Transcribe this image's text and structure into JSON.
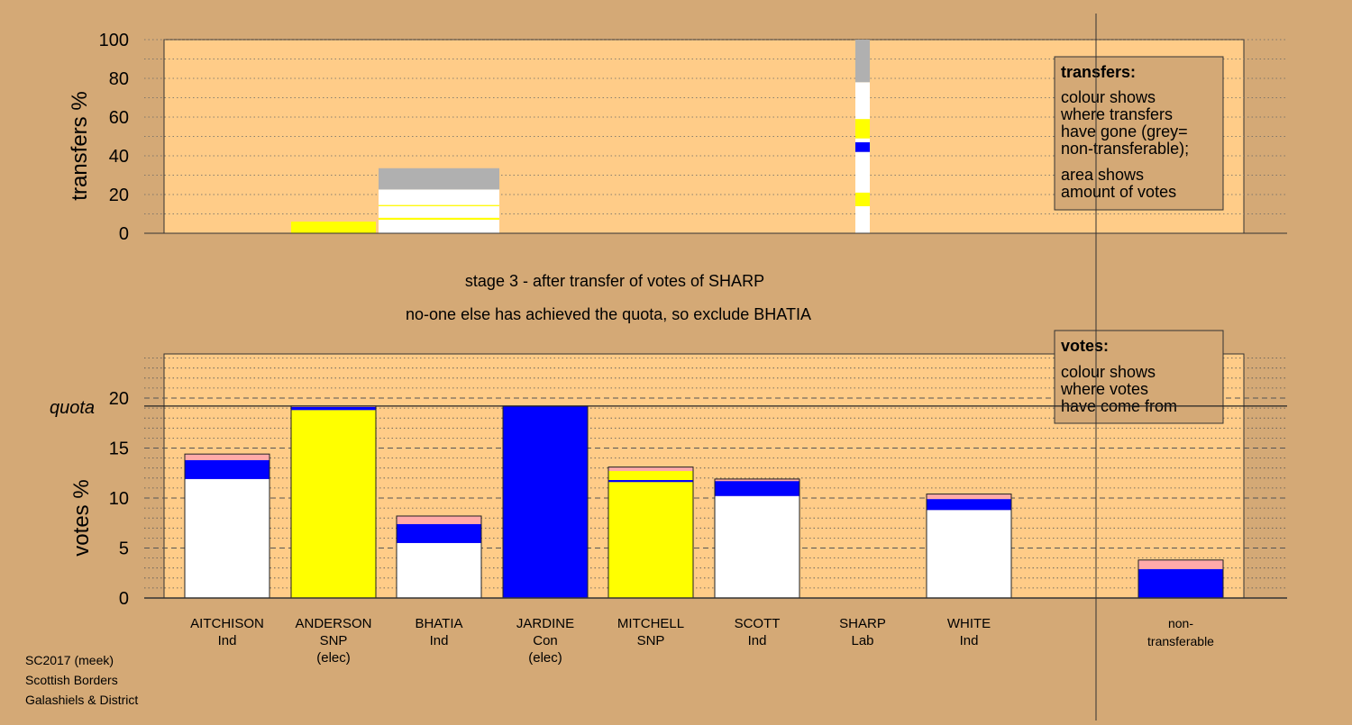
{
  "titles": {
    "stage": "stage 3 - after transfer of votes of SHARP",
    "note": "no-one else has achieved the quota, so exclude BHATIA"
  },
  "footer": [
    "SC2017 (meek)",
    "Scottish Borders",
    "Galashiels & District"
  ],
  "colors": {
    "Ind": "#ffffff",
    "SNP": "#ffff00",
    "Con": "#0000ff",
    "Lab": "#ffaaaa",
    "nontransferable": "#b0b0b0",
    "panel": "#ffcc88",
    "background": "#d4a976"
  },
  "legend_transfers": {
    "title": "transfers:",
    "lines1": [
      "colour shows",
      "where transfers",
      "have gone (grey=",
      "non-transferable);"
    ],
    "lines2": [
      "area shows",
      "amount of votes"
    ]
  },
  "legend_votes": {
    "title": "votes:",
    "lines": [
      "colour shows",
      "where votes",
      "have come from"
    ]
  },
  "chart_data": [
    {
      "type": "bar",
      "stacked": true,
      "ylabel": "transfers %",
      "ylim": [
        0,
        100
      ],
      "yticks": [
        0,
        20,
        40,
        60,
        80,
        100
      ],
      "grid": "dotted",
      "legend_position": "right",
      "categories": [
        "AITCHISON",
        "ANDERSON",
        "BHATIA",
        "JARDINE",
        "MITCHELL",
        "SCOTT",
        "SHARP",
        "WHITE",
        "non-transferable"
      ],
      "bars": [
        {
          "category": "ANDERSON",
          "segments": [
            {
              "party": "SNP",
              "value": 6
            }
          ]
        },
        {
          "category": "BHATIA",
          "segments": [
            {
              "party": "Ind",
              "value": 7
            },
            {
              "party": "SNP",
              "value": 1
            },
            {
              "party": "Ind",
              "value": 6
            },
            {
              "party": "SNP",
              "value": 0.6
            },
            {
              "party": "Ind",
              "value": 8
            },
            {
              "party": "nontransferable",
              "value": 11
            }
          ]
        },
        {
          "category": "SHARP",
          "segments": [
            {
              "party": "Ind",
              "value": 14
            },
            {
              "party": "SNP",
              "value": 7
            },
            {
              "party": "Ind",
              "value": 21
            },
            {
              "party": "Con",
              "value": 5
            },
            {
              "party": "Ind",
              "value": 2
            },
            {
              "party": "SNP",
              "value": 10
            },
            {
              "party": "Ind",
              "value": 19
            },
            {
              "party": "nontransferable",
              "value": 22
            }
          ]
        }
      ]
    },
    {
      "type": "bar",
      "stacked": true,
      "ylabel": "votes %",
      "ylim": [
        0,
        20
      ],
      "yticks": [
        0,
        5,
        10,
        15,
        20
      ],
      "quota": 19.2,
      "quota_label": "quota",
      "grid": "dashed",
      "legend_position": "right",
      "bars": [
        {
          "category": "AITCHISON",
          "party": "Ind",
          "status": "",
          "segments": [
            {
              "party": "Ind",
              "value": 11.9
            },
            {
              "party": "Con",
              "value": 1.9
            },
            {
              "party": "Lab",
              "value": 0.6
            }
          ]
        },
        {
          "category": "ANDERSON",
          "party": "SNP",
          "status": "(elec)",
          "segments": [
            {
              "party": "SNP",
              "value": 18.8
            },
            {
              "party": "Con",
              "value": 0.3
            },
            {
              "party": "Lab",
              "value": 0.1
            }
          ]
        },
        {
          "category": "BHATIA",
          "party": "Ind",
          "status": "",
          "segments": [
            {
              "party": "Ind",
              "value": 5.5
            },
            {
              "party": "Con",
              "value": 1.9
            },
            {
              "party": "Lab",
              "value": 0.8
            }
          ]
        },
        {
          "category": "JARDINE",
          "party": "Con",
          "status": "(elec)",
          "segments": [
            {
              "party": "Con",
              "value": 19.2
            }
          ]
        },
        {
          "category": "MITCHELL",
          "party": "SNP",
          "status": "",
          "segments": [
            {
              "party": "SNP",
              "value": 11.6
            },
            {
              "party": "Con",
              "value": 0.2
            },
            {
              "party": "SNP",
              "value": 0.9
            },
            {
              "party": "Lab",
              "value": 0.4
            }
          ]
        },
        {
          "category": "SCOTT",
          "party": "Ind",
          "status": "",
          "segments": [
            {
              "party": "Ind",
              "value": 10.2
            },
            {
              "party": "Con",
              "value": 1.5
            },
            {
              "party": "Lab",
              "value": 0.2
            }
          ]
        },
        {
          "category": "SHARP",
          "party": "Lab",
          "status": "",
          "segments": []
        },
        {
          "category": "WHITE",
          "party": "Ind",
          "status": "",
          "segments": [
            {
              "party": "Ind",
              "value": 8.8
            },
            {
              "party": "Con",
              "value": 1.1
            },
            {
              "party": "Lab",
              "value": 0.5
            }
          ]
        },
        {
          "category": "non-transferable",
          "party": "",
          "status": "",
          "segments": [
            {
              "party": "Con",
              "value": 2.9
            },
            {
              "party": "Lab",
              "value": 0.9
            }
          ]
        }
      ]
    }
  ]
}
